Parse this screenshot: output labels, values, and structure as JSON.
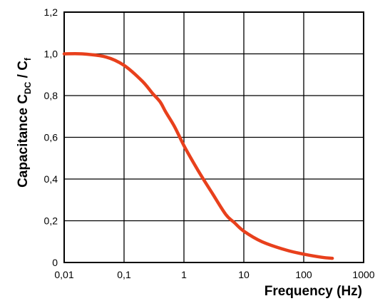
{
  "chart_data": {
    "type": "line",
    "xlabel": "Frequency  (Hz)",
    "ylabel_main": "Capacitance  C",
    "ylabel_sub1": "DC",
    "ylabel_mid": " / C",
    "ylabel_sub2": "f",
    "x_scale": "log",
    "xlim": [
      0.01,
      1000
    ],
    "ylim": [
      0,
      1.2
    ],
    "x_ticks": [
      0.01,
      0.1,
      1,
      10,
      100,
      1000
    ],
    "x_tick_labels": [
      "0,01",
      "0,1",
      "1",
      "10",
      "100",
      "1000"
    ],
    "y_ticks": [
      0,
      0.2,
      0.4,
      0.6,
      0.8,
      1.0,
      1.2
    ],
    "y_tick_labels": [
      "0",
      "0,2",
      "0,4",
      "0,6",
      "0,8",
      "1,0",
      "1,2"
    ],
    "grid": true,
    "line_color": "#e8401c",
    "series": [
      {
        "x": [
          0.01,
          0.02,
          0.05,
          0.1,
          0.2,
          0.3,
          0.4,
          0.5,
          0.7,
          1,
          1.5,
          2,
          3,
          5,
          7,
          10,
          20,
          50,
          100,
          200,
          300
        ],
        "y": [
          1.0,
          1.0,
          0.985,
          0.945,
          0.87,
          0.81,
          0.77,
          0.72,
          0.65,
          0.56,
          0.47,
          0.41,
          0.33,
          0.23,
          0.19,
          0.15,
          0.1,
          0.06,
          0.04,
          0.025,
          0.02
        ]
      }
    ]
  }
}
